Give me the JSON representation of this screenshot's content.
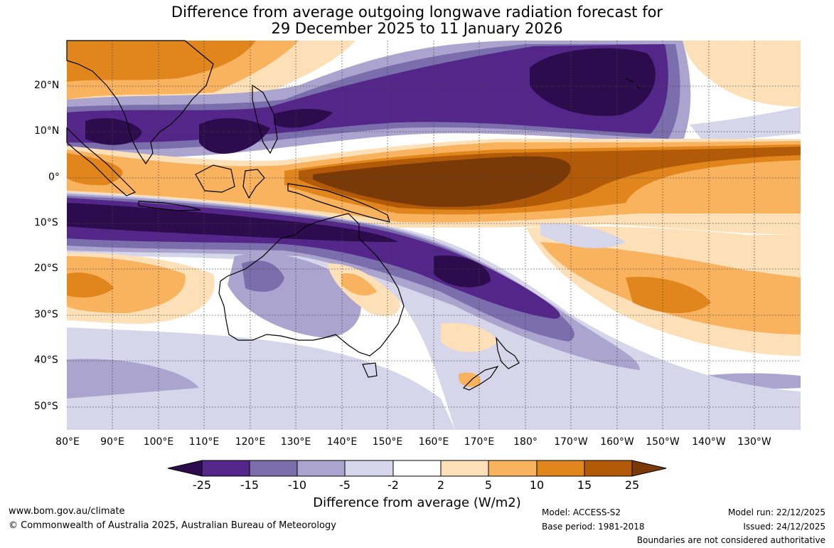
{
  "title": {
    "line1": "Difference from average outgoing longwave radiation forecast for",
    "line2": "29 December 2025 to 11 January 2026"
  },
  "map": {
    "lat_labels": [
      "20°N",
      "10°N",
      "0°",
      "10°S",
      "20°S",
      "30°S",
      "40°S",
      "50°S"
    ],
    "lon_labels": [
      "80°E",
      "90°E",
      "100°E",
      "110°E",
      "120°E",
      "130°E",
      "140°E",
      "150°E",
      "160°E",
      "170°E",
      "180°",
      "170°W",
      "160°W",
      "150°W",
      "140°W",
      "130°W"
    ]
  },
  "legend": {
    "title": "Difference from average (W/m2)",
    "ticks": [
      "-25",
      "-15",
      "-10",
      "-5",
      "-2",
      "2",
      "5",
      "10",
      "15",
      "25"
    ],
    "colors": [
      "#2d0c4e",
      "#55268a",
      "#7b6ead",
      "#aaa4ce",
      "#d7d5ea",
      "#ffffff",
      "#fde0b7",
      "#f9b25e",
      "#e0861d",
      "#b35a09",
      "#7a3a07"
    ]
  },
  "footer": {
    "website": "www.bom.gov.au/climate",
    "copyright": "© Commonwealth of Australia 2025, Australian Bureau of Meteorology",
    "model": "Model: ACCESS-S2",
    "base_period": "Base period: 1981-2018",
    "model_run": "Model run: 22/12/2025",
    "issued": "Issued: 24/12/2025",
    "disclaimer": "Boundaries are not considered authoritative"
  }
}
